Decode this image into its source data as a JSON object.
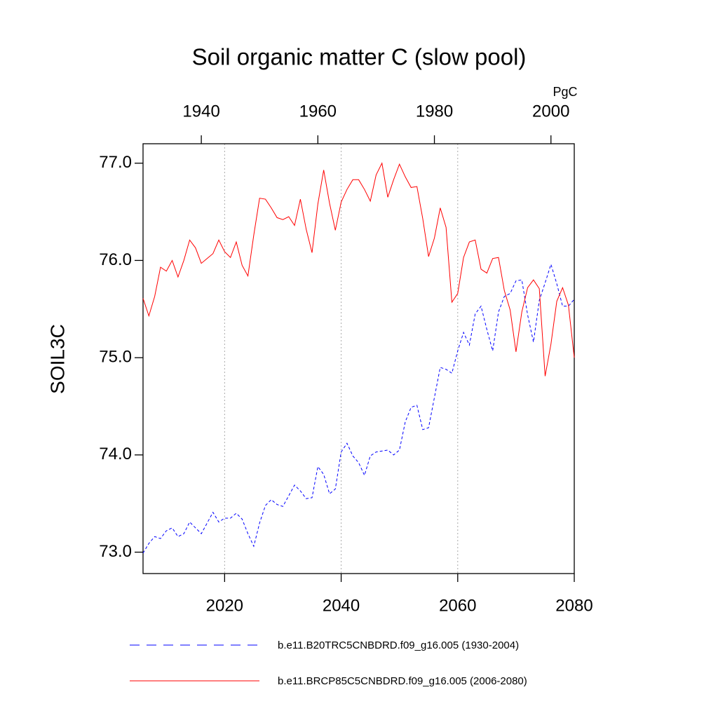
{
  "chart_data": {
    "type": "line",
    "title": "Soil organic matter C (slow pool)",
    "ylabel": "SOIL3C",
    "units": "PgC",
    "x": [
      2006,
      2007,
      2008,
      2009,
      2010,
      2011,
      2012,
      2013,
      2014,
      2015,
      2016,
      2017,
      2018,
      2019,
      2020,
      2021,
      2022,
      2023,
      2024,
      2025,
      2026,
      2027,
      2028,
      2029,
      2030,
      2031,
      2032,
      2033,
      2034,
      2035,
      2036,
      2037,
      2038,
      2039,
      2040,
      2041,
      2042,
      2043,
      2044,
      2045,
      2046,
      2047,
      2048,
      2049,
      2050,
      2051,
      2052,
      2053,
      2054,
      2055,
      2056,
      2057,
      2058,
      2059,
      2060,
      2061,
      2062,
      2063,
      2064,
      2065,
      2066,
      2067,
      2068,
      2069,
      2070,
      2071,
      2072,
      2073,
      2074,
      2075,
      2076,
      2077,
      2078,
      2079,
      2080
    ],
    "x2": [
      1930,
      1931,
      1932,
      1933,
      1934,
      1935,
      1936,
      1937,
      1938,
      1939,
      1940,
      1941,
      1942,
      1943,
      1944,
      1945,
      1946,
      1947,
      1948,
      1949,
      1950,
      1951,
      1952,
      1953,
      1954,
      1955,
      1956,
      1957,
      1958,
      1959,
      1960,
      1961,
      1962,
      1963,
      1964,
      1965,
      1966,
      1967,
      1968,
      1969,
      1970,
      1971,
      1972,
      1973,
      1974,
      1975,
      1976,
      1977,
      1978,
      1979,
      1980,
      1981,
      1982,
      1983,
      1984,
      1985,
      1986,
      1987,
      1988,
      1989,
      1990,
      1991,
      1992,
      1993,
      1994,
      1995,
      1996,
      1997,
      1998,
      1999,
      2000,
      2001,
      2002,
      2003,
      2004
    ],
    "xlim": [
      2006,
      2080
    ],
    "xticks": [
      2020,
      2040,
      2060,
      2080
    ],
    "xtick_color": "#ff0000",
    "x2lim": [
      1930,
      2004
    ],
    "x2ticks": [
      1940,
      1960,
      1980,
      2000
    ],
    "x2tick_color": "#0000ff",
    "ylim": [
      72.78,
      77.2
    ],
    "yticks": [
      {
        "value": 73,
        "label": "73.0"
      },
      {
        "value": 74,
        "label": "74.0"
      },
      {
        "value": 75,
        "label": "75.0"
      },
      {
        "value": 76,
        "label": "76.0"
      },
      {
        "value": 77,
        "label": "77.0"
      }
    ],
    "grid": true,
    "series": [
      {
        "name": "b.e11.B20TRC5CNBDRD.f09_g16.005 (1930-2004)",
        "color": "#0000ff",
        "style": "dashed",
        "axis": "x2",
        "values": [
          72.99,
          73.09,
          73.16,
          73.14,
          73.22,
          73.25,
          73.16,
          73.19,
          73.31,
          73.25,
          73.19,
          73.3,
          73.41,
          73.31,
          73.35,
          73.35,
          73.4,
          73.34,
          73.19,
          73.06,
          73.3,
          73.48,
          73.54,
          73.49,
          73.47,
          73.58,
          73.69,
          73.63,
          73.55,
          73.56,
          73.88,
          73.8,
          73.6,
          73.65,
          74.03,
          74.12,
          73.99,
          73.92,
          73.79,
          73.99,
          74.03,
          74.04,
          74.05,
          74.0,
          74.05,
          74.34,
          74.49,
          74.51,
          74.26,
          74.28,
          74.59,
          74.9,
          74.88,
          74.84,
          75.07,
          75.26,
          75.13,
          75.45,
          75.53,
          75.29,
          75.07,
          75.47,
          75.63,
          75.66,
          75.79,
          75.8,
          75.44,
          75.16,
          75.59,
          75.77,
          75.96,
          75.76,
          75.53,
          75.53,
          75.6
        ]
      },
      {
        "name": "b.e11.BRCP85C5CNBDRD.f09_g16.005 (2006-2080)",
        "color": "#ff0000",
        "style": "solid",
        "values": [
          75.61,
          75.43,
          75.63,
          75.93,
          75.89,
          76.0,
          75.83,
          76.0,
          76.21,
          76.13,
          75.97,
          76.02,
          76.07,
          76.21,
          76.09,
          76.03,
          76.19,
          75.95,
          75.84,
          76.26,
          76.64,
          76.63,
          76.54,
          76.44,
          76.42,
          76.45,
          76.36,
          76.63,
          76.32,
          76.08,
          76.58,
          76.93,
          76.59,
          76.31,
          76.6,
          76.73,
          76.83,
          76.83,
          76.73,
          76.61,
          76.88,
          77.0,
          76.65,
          76.83,
          76.99,
          76.86,
          76.75,
          76.76,
          76.43,
          76.04,
          76.23,
          76.54,
          76.34,
          75.57,
          75.66,
          76.03,
          76.19,
          76.21,
          75.91,
          75.87,
          76.02,
          76.03,
          75.69,
          75.49,
          75.06,
          75.47,
          75.72,
          75.8,
          75.71,
          74.81,
          75.14,
          75.58,
          75.72,
          75.54,
          75.0
        ]
      }
    ]
  }
}
